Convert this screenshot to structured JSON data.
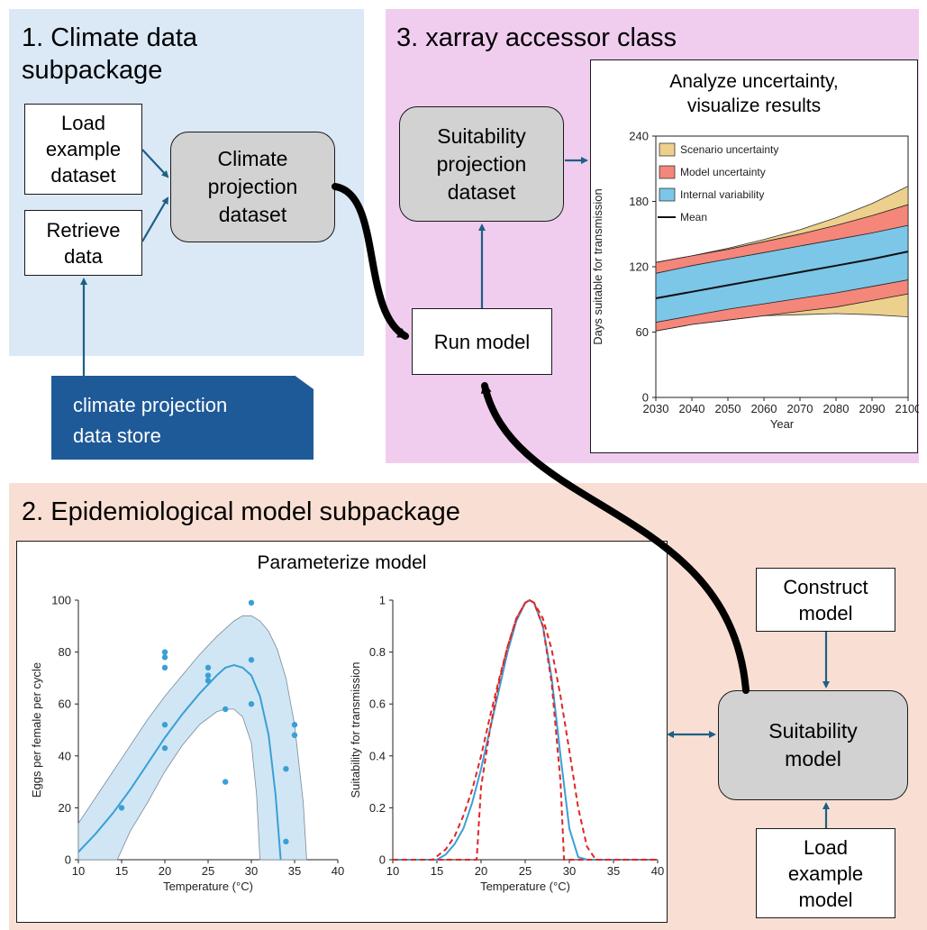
{
  "panels": {
    "climate": {
      "title": "1. Climate data\nsubpackage"
    },
    "accessor": {
      "title": "3. xarray accessor class"
    },
    "epi": {
      "title": "2. Epidemiological model subpackage"
    }
  },
  "boxes": {
    "load_example_dataset": "Load\nexample\ndataset",
    "retrieve_data": "Retrieve\ndata",
    "climate_projection_dataset": "Climate\nprojection\ndataset",
    "data_store": "climate projection\ndata store",
    "suitability_projection_dataset": "Suitability\nprojection\ndataset",
    "run_model": "Run model",
    "construct_model": "Construct\nmodel",
    "suitability_model": "Suitability\nmodel",
    "load_example_model": "Load\nexample\nmodel"
  },
  "colors": {
    "arrow_blue": "#1e5f85",
    "scenario": "#ecd08c",
    "model": "#f4867a",
    "internal": "#7cc6e8",
    "curve_blue": "#3a9fd6",
    "dashed_red": "#e02626"
  },
  "charts": {
    "uncertainty": {
      "title": "Analyze uncertainty,\nvisualize results",
      "chart_data": {
        "type": "area",
        "xlabel": "Year",
        "ylabel": "Days suitable for transmission",
        "xlim": [
          2030,
          2100
        ],
        "ylim": [
          0,
          240
        ],
        "x_ticks": [
          "2030",
          "2040",
          "2050",
          "2060",
          "2070",
          "2080",
          "2090",
          "2100"
        ],
        "y_ticks": [
          "0",
          "60",
          "120",
          "180",
          "240"
        ],
        "legend_position": "top-left",
        "legend": [
          "Scenario uncertainty",
          "Model uncertainty",
          "Internal variability",
          "Mean"
        ],
        "x": [
          2030,
          2040,
          2050,
          2060,
          2070,
          2080,
          2090,
          2100
        ],
        "mean": [
          91,
          97,
          103,
          109,
          115,
          121,
          127,
          134
        ],
        "internal_variability": {
          "lower": [
            69,
            75,
            81,
            86,
            91,
            96,
            102,
            108
          ],
          "upper": [
            114,
            121,
            127,
            133,
            139,
            145,
            151,
            158
          ]
        },
        "model_uncertainty": {
          "lower": [
            61,
            67,
            71,
            75,
            79,
            83,
            89,
            95
          ],
          "upper": [
            124,
            130,
            136,
            143,
            150,
            158,
            167,
            177
          ]
        },
        "scenario_uncertainty": {
          "lower": [
            61,
            67,
            71,
            75,
            76,
            77,
            76,
            74
          ],
          "upper": [
            124,
            130,
            137,
            145,
            154,
            165,
            178,
            194
          ]
        }
      }
    },
    "parameterize": {
      "title": "Parameterize model",
      "eggs": {
        "chart_data": {
          "type": "scatter",
          "xlabel": "Temperature (°C)",
          "ylabel": "Eggs per female per cycle",
          "xlim": [
            10,
            40
          ],
          "ylim": [
            0,
            100
          ],
          "x_ticks": [
            "10",
            "15",
            "20",
            "25",
            "30",
            "35",
            "40"
          ],
          "y_ticks": [
            "0",
            "20",
            "40",
            "60",
            "80",
            "100"
          ],
          "points": [
            [
              15,
              20
            ],
            [
              20,
              80
            ],
            [
              20,
              78
            ],
            [
              20,
              74
            ],
            [
              20,
              52
            ],
            [
              20,
              43
            ],
            [
              25,
              74
            ],
            [
              25,
              71
            ],
            [
              25,
              69
            ],
            [
              27,
              58
            ],
            [
              27,
              30
            ],
            [
              30,
              99
            ],
            [
              30,
              77
            ],
            [
              30,
              60
            ],
            [
              34,
              35
            ],
            [
              34,
              7
            ],
            [
              35,
              52
            ],
            [
              35,
              48
            ]
          ],
          "fit": {
            "x": [
              10,
              12,
              14,
              16,
              18,
              20,
              22,
              24,
              26,
              27,
              28,
              29,
              30,
              31,
              32,
              32.8,
              33.4
            ],
            "y": [
              3,
              10,
              18,
              27,
              37,
              47,
              56,
              64,
              71,
              74,
              75,
              74,
              71,
              63,
              48,
              25,
              0
            ]
          },
          "ci_upper": {
            "x": [
              10,
              12,
              14,
              16,
              18,
              20,
              22,
              24,
              26,
              28,
              29,
              30,
              31,
              32,
              33,
              34,
              35,
              36,
              36.4
            ],
            "y": [
              14,
              24,
              34,
              44,
              54,
              63,
              71,
              79,
              86,
              92,
              94,
              94,
              92,
              88,
              81,
              70,
              52,
              22,
              0
            ]
          },
          "ci_lower": {
            "x": [
              14.5,
              16,
              18,
              20,
              22,
              24,
              26,
              27,
              28,
              29,
              30,
              30.6,
              31
            ],
            "y": [
              0,
              11,
              22,
              34,
              44,
              52,
              57,
              58,
              58,
              55,
              45,
              25,
              0
            ]
          }
        }
      },
      "suitability": {
        "chart_data": {
          "type": "line",
          "xlabel": "Temperature (°C)",
          "ylabel": "Suitability for transmission",
          "xlim": [
            10,
            40
          ],
          "ylim": [
            0,
            1
          ],
          "x_ticks": [
            "10",
            "15",
            "20",
            "25",
            "30",
            "35",
            "40"
          ],
          "y_ticks": [
            "0",
            "0.2",
            "0.4",
            "0.6",
            "0.8",
            "1"
          ],
          "series": [
            {
              "style": "solid",
              "x": [
                10,
                15,
                16,
                17,
                18,
                19,
                20,
                21,
                22,
                23,
                24,
                25,
                25.5,
                26,
                27,
                28,
                29,
                30,
                31,
                32,
                33,
                40
              ],
              "y": [
                0,
                0,
                0.02,
                0.06,
                0.12,
                0.22,
                0.35,
                0.5,
                0.65,
                0.8,
                0.92,
                0.99,
                1,
                0.99,
                0.9,
                0.7,
                0.4,
                0.12,
                0.01,
                0,
                0,
                0
              ]
            },
            {
              "style": "dashed",
              "x": [
                10,
                14.5,
                16,
                17,
                18,
                19,
                20,
                21,
                22,
                23,
                24,
                25,
                25.5,
                26,
                27,
                28,
                29,
                30,
                31,
                32,
                33,
                40
              ],
              "y": [
                0,
                0,
                0.04,
                0.09,
                0.17,
                0.27,
                0.4,
                0.55,
                0.69,
                0.82,
                0.93,
                0.99,
                1,
                0.99,
                0.93,
                0.81,
                0.63,
                0.42,
                0.2,
                0.05,
                0,
                0
              ]
            },
            {
              "style": "dashed",
              "x": [
                10,
                19.5,
                20,
                21,
                22,
                23,
                24,
                25,
                25.5,
                26,
                27,
                28,
                29,
                29.4,
                40
              ],
              "y": [
                0,
                0,
                0.28,
                0.5,
                0.68,
                0.82,
                0.93,
                0.99,
                1,
                0.99,
                0.9,
                0.68,
                0.3,
                0,
                0
              ]
            }
          ]
        }
      }
    }
  }
}
